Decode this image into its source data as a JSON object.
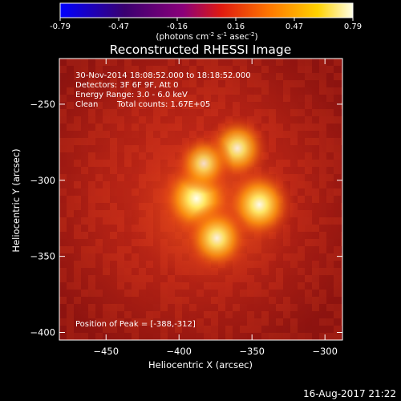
{
  "chart_data": {
    "type": "heatmap",
    "title": "Reconstructed RHESSI Image",
    "xlabel": "Heliocentric X (arcsec)",
    "ylabel": "Heliocentric Y (arcsec)",
    "xlim": [
      -482,
      -288
    ],
    "ylim": [
      -405,
      -220
    ],
    "xticks": [
      -450,
      -400,
      -350,
      -300
    ],
    "yticks": [
      -250,
      -300,
      -350,
      -400
    ],
    "colorbar": {
      "min": -0.79,
      "max": 0.79,
      "ticks": [
        "-0.79",
        "-0.47",
        "-0.16",
        "0.16",
        "0.47",
        "0.79"
      ],
      "unit": "(photons cm",
      "unit_sup1": "-2",
      "unit_mid": " s",
      "unit_sup2": "-1",
      "unit_tail": " asec",
      "unit_sup3": "-2",
      "unit_close": ")"
    },
    "annotations": [
      "30-Nov-2014 18:08:52.000 to 18:18:52.000",
      "Detectors: 3F 6F 9F, Att 0",
      "Energy Range: 3.0 - 6.0 keV",
      "Clean",
      "Total counts: 1.67E+05"
    ],
    "peak_label": "Position of Peak = [-388,-312]",
    "sources": [
      {
        "x": -388,
        "y": -312,
        "intensity": 0.79
      },
      {
        "x": -345,
        "y": -316,
        "intensity": 0.7
      },
      {
        "x": -374,
        "y": -338,
        "intensity": 0.62
      },
      {
        "x": -360,
        "y": -279,
        "intensity": 0.58
      },
      {
        "x": -383,
        "y": -289,
        "intensity": 0.45
      }
    ],
    "footer_date": "16-Aug-2017 21:22"
  }
}
